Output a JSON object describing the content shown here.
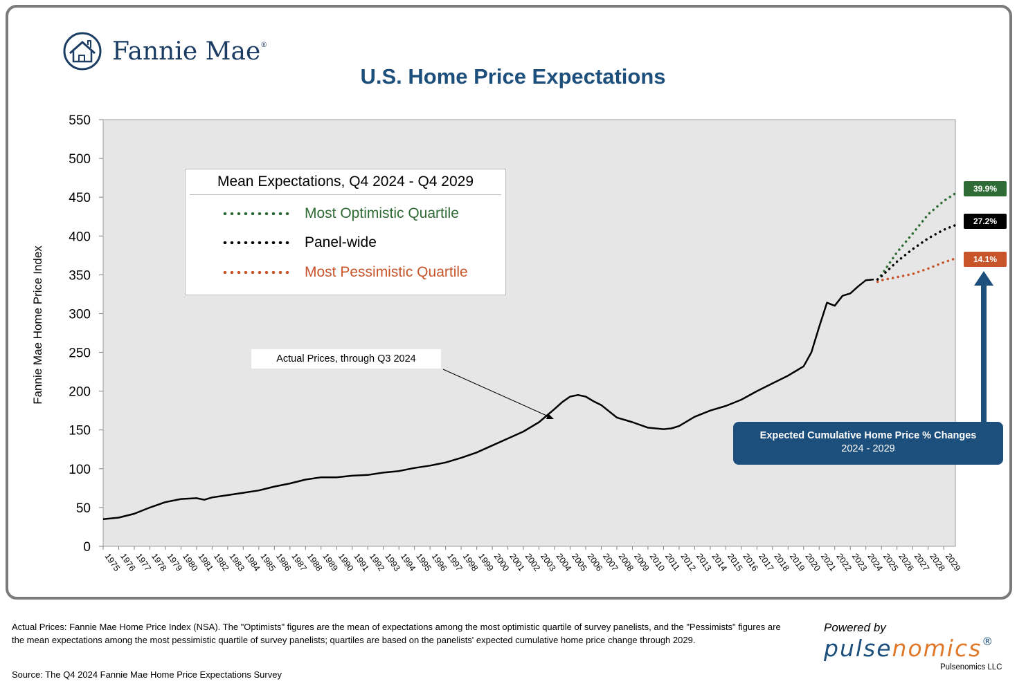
{
  "brand": {
    "name": "Fannie Mae",
    "registered": "®"
  },
  "title": "U.S. Home Price Expectations",
  "legend": {
    "title": "Mean Expectations, Q4 2024 - Q4 2029",
    "items": [
      {
        "label": "Most Optimistic Quartile",
        "color": "#2f6b35"
      },
      {
        "label": "Panel-wide",
        "color": "#000000"
      },
      {
        "label": "Most Pessimistic Quartile",
        "color": "#c8542a"
      }
    ]
  },
  "badges": [
    {
      "label": "39.9%",
      "color": "#2f6b35"
    },
    {
      "label": "27.2%",
      "color": "#000000"
    },
    {
      "label": "14.1%",
      "color": "#c8542a"
    }
  ],
  "callout": {
    "line1": "Expected Cumulative Home Price % Changes",
    "line2": "2024 - 2029"
  },
  "annotation": "Actual Prices, through Q3 2024",
  "footnote": "Actual Prices: Fannie Mae Home Price Index (NSA).  The \"Optimists\" figures are the mean of expectations among the most optimistic quartile of survey panelists, and the \"Pessimists\" figures are the mean expectations among the most pessimistic quartile of survey panelists; quartiles are based on the panelists' expected cumulative home price change through 2029.",
  "source": "Source: The Q4 2024 Fannie Mae Home Price Expectations Survey",
  "powered_by": "Powered by",
  "pulsenomics_a": "pulse",
  "pulsenomics_b": "nomics",
  "pulsenomics_reg": "®",
  "pulsenomics_llc": "Pulsenomics LLC",
  "chart_data": {
    "type": "line",
    "ylabel": "Fannie Mae Home Price Index",
    "ylim": [
      0,
      550
    ],
    "yticks": [
      0,
      50,
      100,
      150,
      200,
      250,
      300,
      350,
      400,
      450,
      500,
      550
    ],
    "xlim": [
      1975,
      2029.75
    ],
    "x_tick_labels": [
      "1975",
      "1976",
      "1977",
      "1978",
      "1979",
      "1980",
      "1981",
      "1982",
      "1983",
      "1984",
      "1985",
      "1986",
      "1987",
      "1988",
      "1989",
      "1990",
      "1991",
      "1992",
      "1993",
      "1994",
      "1995",
      "1996",
      "1997",
      "1998",
      "1999",
      "2000",
      "2001",
      "2002",
      "2003",
      "2004",
      "2005",
      "2006",
      "2007",
      "2008",
      "2009",
      "2010",
      "2011",
      "2012",
      "2013",
      "2014",
      "2015",
      "2016",
      "2017",
      "2018",
      "2019",
      "2020",
      "2021",
      "2022",
      "2023",
      "2024",
      "2025",
      "2026",
      "2027",
      "2028",
      "2029"
    ],
    "grid": false,
    "series": [
      {
        "name": "Actual Prices, through Q3 2024",
        "style": "solid",
        "color": "#000000",
        "x": [
          1975,
          1976,
          1977,
          1978,
          1979,
          1980,
          1981,
          1981.5,
          1982,
          1983,
          1984,
          1985,
          1986,
          1987,
          1988,
          1989,
          1990,
          1991,
          1992,
          1993,
          1994,
          1995,
          1996,
          1997,
          1998,
          1999,
          2000,
          2001,
          2002,
          2003,
          2004,
          2004.5,
          2005,
          2005.5,
          2006,
          2006.5,
          2007,
          2008,
          2009,
          2010,
          2010.5,
          2011,
          2011.5,
          2012,
          2013,
          2014,
          2015,
          2016,
          2017,
          2018,
          2019,
          2019.5,
          2020,
          2020.5,
          2021,
          2021.5,
          2022,
          2022.5,
          2023,
          2023.5,
          2024,
          2024.5
        ],
        "y": [
          35,
          37,
          42,
          50,
          57,
          61,
          62,
          60,
          63,
          66,
          69,
          72,
          77,
          81,
          86,
          89,
          89,
          91,
          92,
          95,
          97,
          101,
          104,
          108,
          114,
          121,
          130,
          139,
          148,
          160,
          177,
          186,
          193,
          195,
          193,
          187,
          182,
          166,
          160,
          153,
          152,
          151,
          152,
          155,
          167,
          175,
          181,
          189,
          200,
          210,
          220,
          226,
          232,
          250,
          283,
          314,
          310,
          323,
          326,
          335,
          343,
          344
        ]
      },
      {
        "name": "Most Optimistic Quartile",
        "style": "dotted",
        "color": "#2f6b35",
        "x": [
          2024.75,
          2025,
          2026,
          2027,
          2028,
          2029,
          2029.75
        ],
        "y": [
          344,
          350,
          379,
          403,
          428,
          445,
          455
        ]
      },
      {
        "name": "Panel-wide",
        "style": "dotted",
        "color": "#000000",
        "x": [
          2024.75,
          2025,
          2026,
          2027,
          2028,
          2029,
          2029.75
        ],
        "y": [
          344,
          348,
          367,
          383,
          397,
          408,
          414
        ]
      },
      {
        "name": "Most Pessimistic Quartile",
        "style": "dotted",
        "color": "#c8542a",
        "x": [
          2024.75,
          2025,
          2026,
          2027,
          2028,
          2029,
          2029.75
        ],
        "y": [
          341,
          343,
          347,
          351,
          358,
          366,
          371
        ]
      }
    ]
  }
}
